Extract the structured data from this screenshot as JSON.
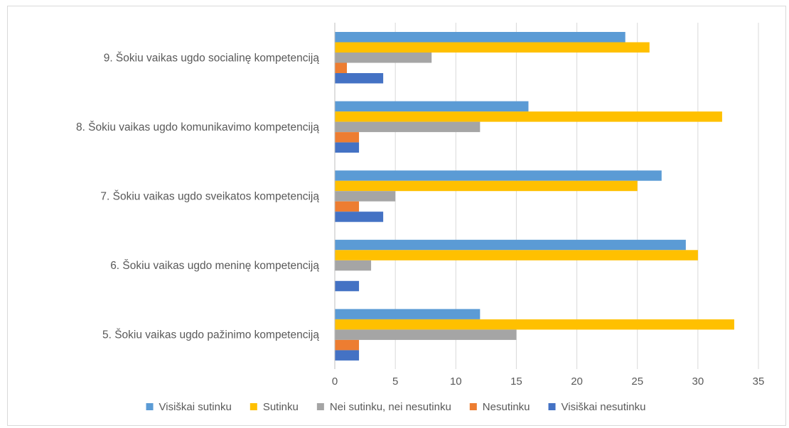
{
  "chart_data": {
    "type": "bar",
    "orientation": "horizontal",
    "categories": [
      "5. Šokiu vaikas ugdo pažinimo kompetenciją",
      "6. Šokiu vaikas ugdo meninę kompetenciją",
      "7. Šokiu vaikas ugdo sveikatos kompetenciją",
      "8. Šokiu vaikas ugdo komunikavimo kompetenciją",
      "9. Šokiu vaikas ugdo socialinę kompetenciją"
    ],
    "series": [
      {
        "name": "Visiškai sutinku",
        "color": "#5B9BD5",
        "values": [
          12,
          29,
          27,
          16,
          24
        ]
      },
      {
        "name": "Sutinku",
        "color": "#FFC000",
        "values": [
          33,
          30,
          25,
          32,
          26
        ]
      },
      {
        "name": "Nei sutinku, nei nesutinku",
        "color": "#A5A5A5",
        "values": [
          15,
          3,
          5,
          12,
          8
        ]
      },
      {
        "name": "Nesutinku",
        "color": "#ED7D31",
        "values": [
          2,
          0,
          2,
          2,
          1
        ]
      },
      {
        "name": "Visiškai nesutinku",
        "color": "#4472C4",
        "values": [
          2,
          2,
          4,
          2,
          4
        ]
      }
    ],
    "xlim": [
      0,
      35
    ],
    "xticks": [
      0,
      5,
      10,
      15,
      20,
      25,
      30,
      35
    ],
    "title": "",
    "xlabel": "",
    "ylabel": "",
    "grid": "vertical",
    "legend_position": "bottom"
  }
}
